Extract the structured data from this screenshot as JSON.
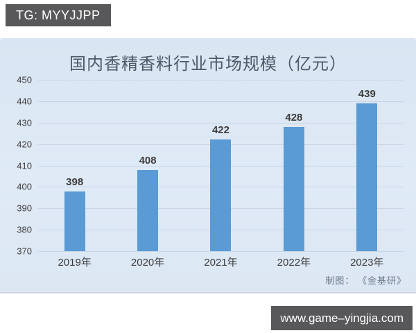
{
  "badges": {
    "top_left": "TG: MYYJJPP",
    "bottom_right": "www.game–yingjia.com"
  },
  "chart_data": {
    "type": "bar",
    "title": "国内香精香料行业市场规模（亿元）",
    "categories": [
      "2019年",
      "2020年",
      "2021年",
      "2022年",
      "2023年"
    ],
    "values": [
      398,
      408,
      422,
      428,
      439
    ],
    "ylim": [
      370,
      450
    ],
    "ytick_step": 10,
    "y_ticks": [
      450,
      440,
      430,
      420,
      410,
      400,
      390,
      380,
      370
    ],
    "grid": true,
    "legend": "none",
    "bar_color": "#5b9bd5",
    "panel_background": "#dce8f4",
    "badge_background": "#58585a",
    "credit": "制图： 《金基研》"
  }
}
